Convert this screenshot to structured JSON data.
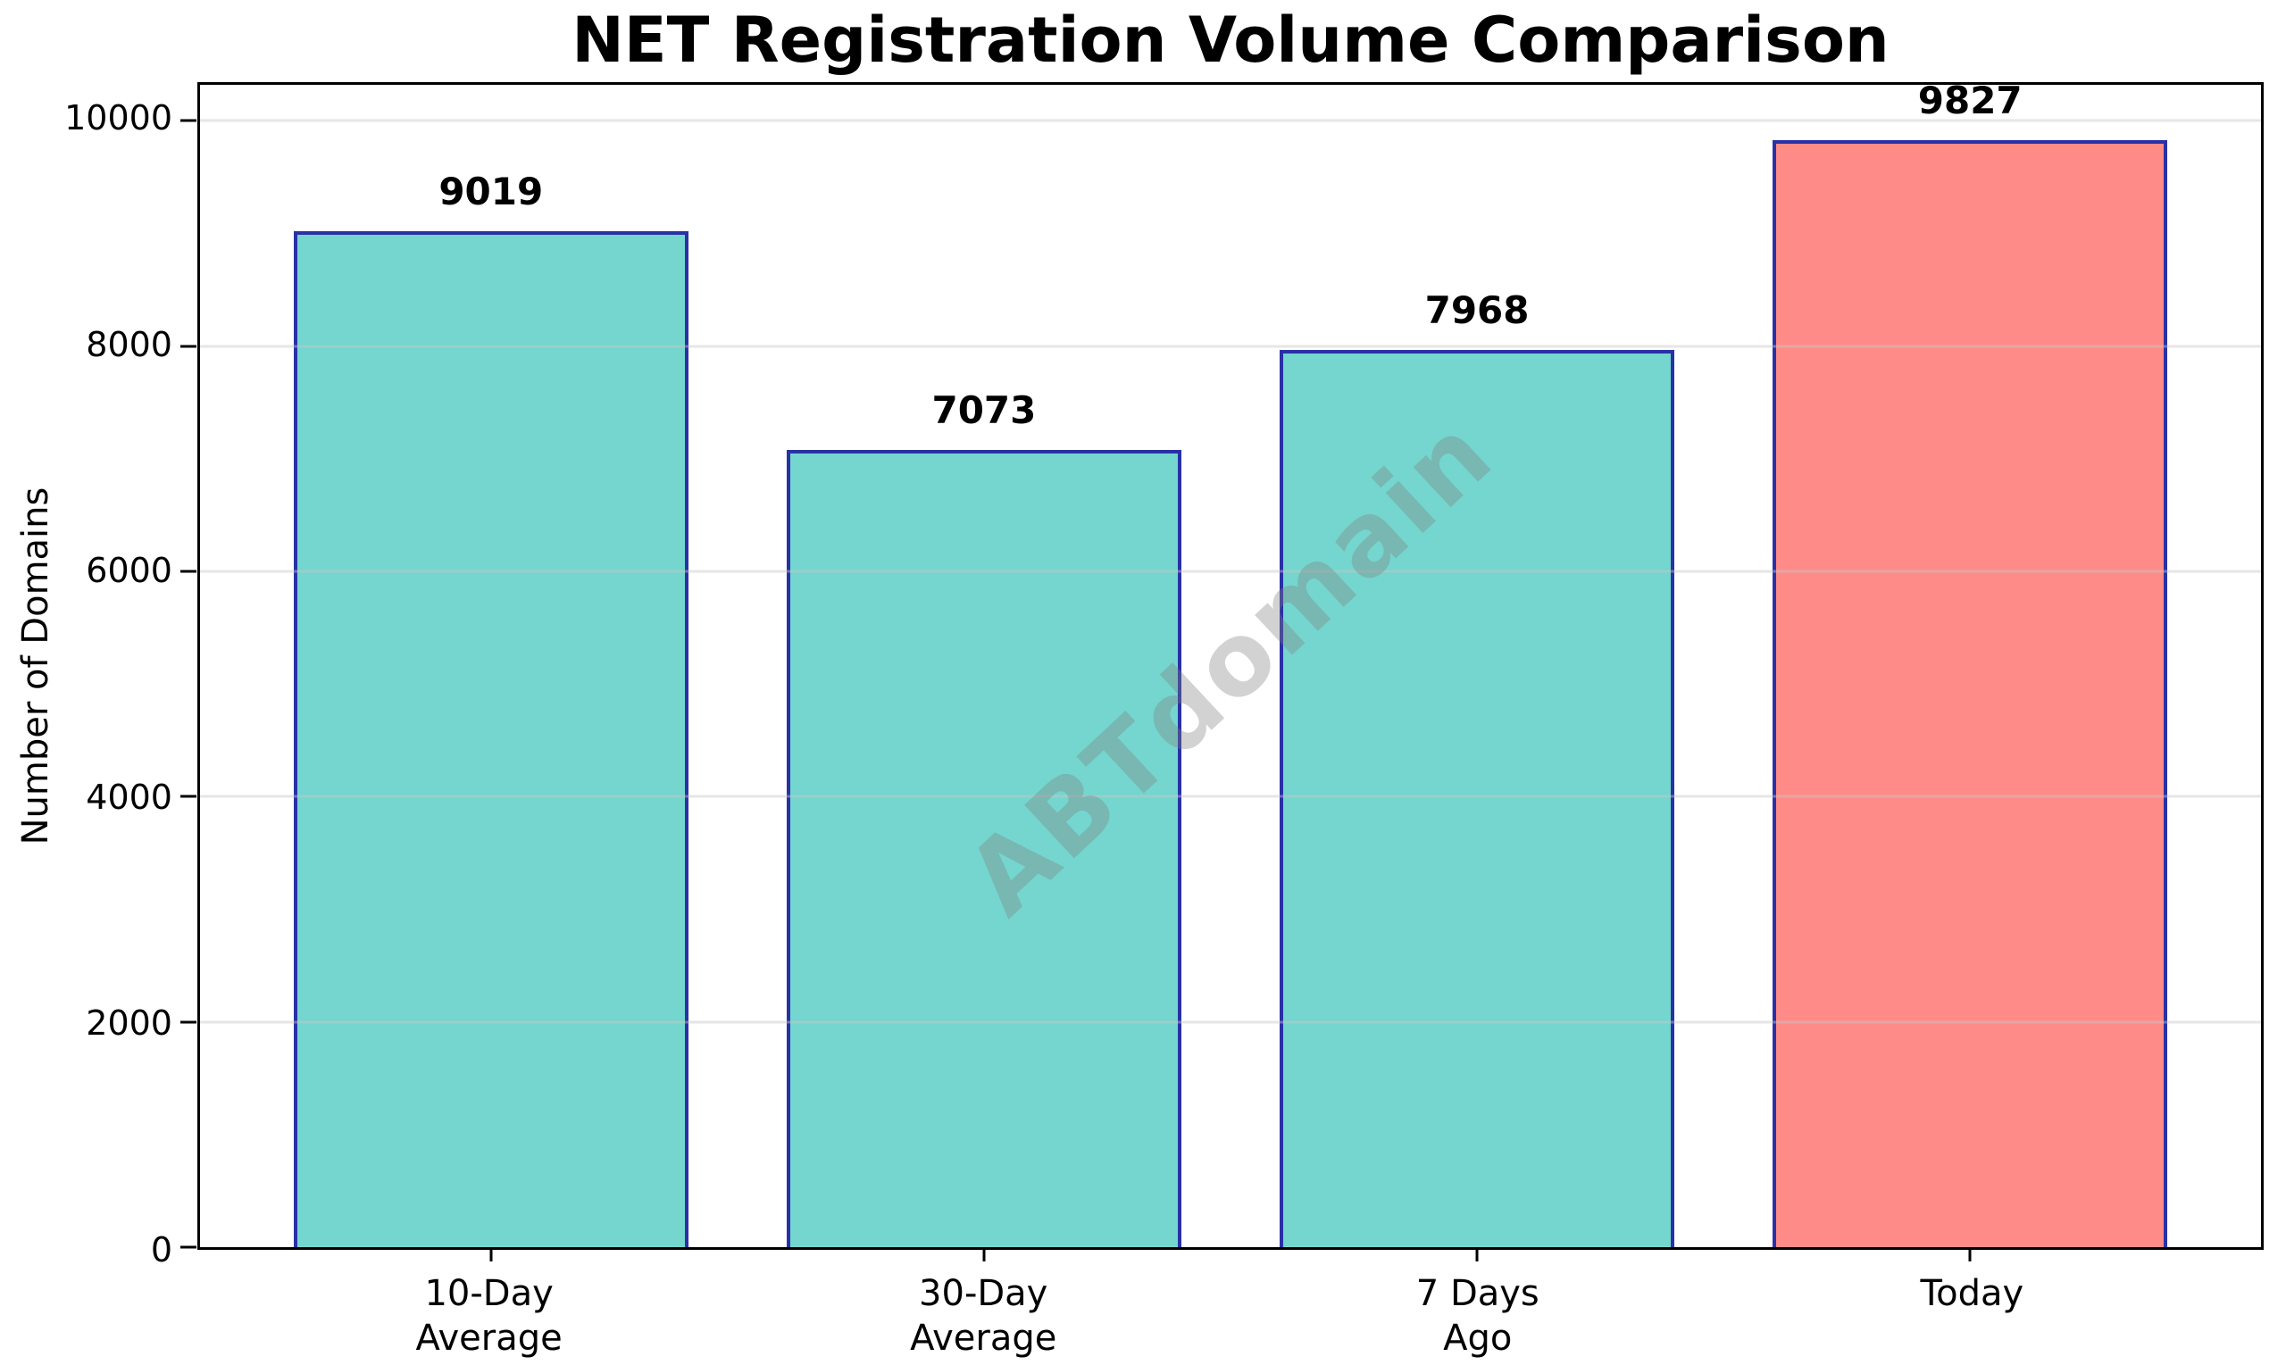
{
  "chart_data": {
    "type": "bar",
    "title": "NET Registration Volume Comparison",
    "ylabel": "Number of Domains",
    "xlabel": "",
    "categories": [
      "10-Day\nAverage",
      "30-Day\nAverage",
      "7 Days\nAgo",
      "Today"
    ],
    "values": [
      9019,
      7073,
      7968,
      9827
    ],
    "value_labels": [
      "9019",
      "7073",
      "7968",
      "9827"
    ],
    "bar_colors": [
      "#74D6CE",
      "#74D6CE",
      "#74D6CE",
      "#FF8B88"
    ],
    "bar_edge_color": "#2931A6",
    "ylim": [
      0,
      10318
    ],
    "yticks": [
      0,
      2000,
      4000,
      6000,
      8000,
      10000
    ],
    "grid": "horizontal-only, light gray, drawn over bars",
    "legend": "none",
    "watermark": {
      "text": "ABTdomain",
      "color": "#808080",
      "opacity": 0.35,
      "rotation_deg": -43
    }
  }
}
